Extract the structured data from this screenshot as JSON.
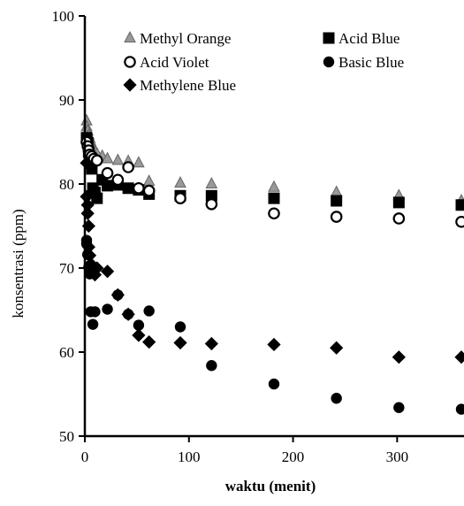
{
  "chart_data": {
    "type": "scatter",
    "title": "",
    "xlabel": "waktu (menit)",
    "ylabel": "konsentrasi (ppm)",
    "xlim": [
      0,
      360
    ],
    "ylim": [
      50,
      100
    ],
    "xticks": [
      0,
      100,
      200,
      300
    ],
    "yticks": [
      50,
      60,
      70,
      80,
      90,
      100
    ],
    "grid": false,
    "legend": "top",
    "series": [
      {
        "name": "Methyl Orange",
        "marker": "triangle",
        "color": "#999999",
        "stroke": "#666666",
        "points": [
          [
            0,
            87.5
          ],
          [
            0,
            86.8
          ],
          [
            1,
            86.3
          ],
          [
            2,
            85.8
          ],
          [
            3,
            85.4
          ],
          [
            4,
            85.0
          ],
          [
            5,
            84.6
          ],
          [
            7,
            84.0
          ],
          [
            10,
            83.6
          ],
          [
            15,
            83.3
          ],
          [
            20,
            83.0
          ],
          [
            30,
            82.8
          ],
          [
            40,
            82.7
          ],
          [
            50,
            82.5
          ],
          [
            60,
            80.3
          ],
          [
            90,
            80.1
          ],
          [
            120,
            80.0
          ],
          [
            180,
            79.6
          ],
          [
            240,
            79.0
          ],
          [
            300,
            78.6
          ],
          [
            360,
            78.0
          ]
        ]
      },
      {
        "name": "Acid Blue",
        "marker": "square",
        "color": "#000000",
        "stroke": "#000000",
        "points": [
          [
            0,
            85.5
          ],
          [
            1,
            84.9
          ],
          [
            2,
            83.8
          ],
          [
            3,
            83.0
          ],
          [
            4,
            82.5
          ],
          [
            5,
            81.8
          ],
          [
            6,
            79.5
          ],
          [
            8,
            79.0
          ],
          [
            10,
            78.3
          ],
          [
            15,
            80.5
          ],
          [
            20,
            79.8
          ],
          [
            30,
            79.9
          ],
          [
            40,
            79.5
          ],
          [
            50,
            79.3
          ],
          [
            60,
            78.8
          ],
          [
            90,
            78.6
          ],
          [
            120,
            78.6
          ],
          [
            180,
            78.3
          ],
          [
            240,
            78.0
          ],
          [
            300,
            77.8
          ],
          [
            360,
            77.5
          ]
        ]
      },
      {
        "name": "Acid Violet",
        "marker": "circle-open",
        "color": "#ffffff",
        "stroke": "#000000",
        "points": [
          [
            0,
            85.0
          ],
          [
            1,
            84.5
          ],
          [
            2,
            84.0
          ],
          [
            3,
            83.5
          ],
          [
            5,
            83.3
          ],
          [
            7,
            83.0
          ],
          [
            10,
            82.8
          ],
          [
            20,
            81.3
          ],
          [
            30,
            80.5
          ],
          [
            40,
            82.0
          ],
          [
            50,
            79.5
          ],
          [
            60,
            79.2
          ],
          [
            90,
            78.3
          ],
          [
            120,
            77.6
          ],
          [
            180,
            76.5
          ],
          [
            240,
            76.1
          ],
          [
            300,
            75.9
          ],
          [
            360,
            75.5
          ]
        ]
      },
      {
        "name": "Basic Blue",
        "marker": "circle",
        "color": "#000000",
        "stroke": "#000000",
        "points": [
          [
            0,
            73.3
          ],
          [
            0,
            72.9
          ],
          [
            1,
            71.6
          ],
          [
            2,
            70.1
          ],
          [
            3,
            69.3
          ],
          [
            4,
            64.8
          ],
          [
            6,
            63.3
          ],
          [
            8,
            64.8
          ],
          [
            20,
            65.1
          ],
          [
            30,
            66.8
          ],
          [
            40,
            64.5
          ],
          [
            50,
            63.2
          ],
          [
            60,
            64.9
          ],
          [
            90,
            63.0
          ],
          [
            120,
            58.4
          ],
          [
            180,
            56.2
          ],
          [
            240,
            54.5
          ],
          [
            300,
            53.4
          ],
          [
            360,
            53.2
          ]
        ]
      },
      {
        "name": "Methylene Blue",
        "marker": "diamond",
        "color": "#000000",
        "stroke": "#000000",
        "points": [
          [
            0,
            82.5
          ],
          [
            0,
            78.5
          ],
          [
            1,
            77.5
          ],
          [
            1,
            76.5
          ],
          [
            2,
            75.0
          ],
          [
            2,
            72.5
          ],
          [
            3,
            71.5
          ],
          [
            4,
            70.5
          ],
          [
            5,
            70.0
          ],
          [
            6,
            69.5
          ],
          [
            8,
            69.2
          ],
          [
            10,
            70.0
          ],
          [
            20,
            69.6
          ],
          [
            30,
            66.8
          ],
          [
            40,
            64.5
          ],
          [
            50,
            62.0
          ],
          [
            60,
            61.2
          ],
          [
            90,
            61.1
          ],
          [
            120,
            61.0
          ],
          [
            180,
            60.9
          ],
          [
            240,
            60.5
          ],
          [
            300,
            59.4
          ],
          [
            360,
            59.4
          ]
        ]
      }
    ]
  }
}
